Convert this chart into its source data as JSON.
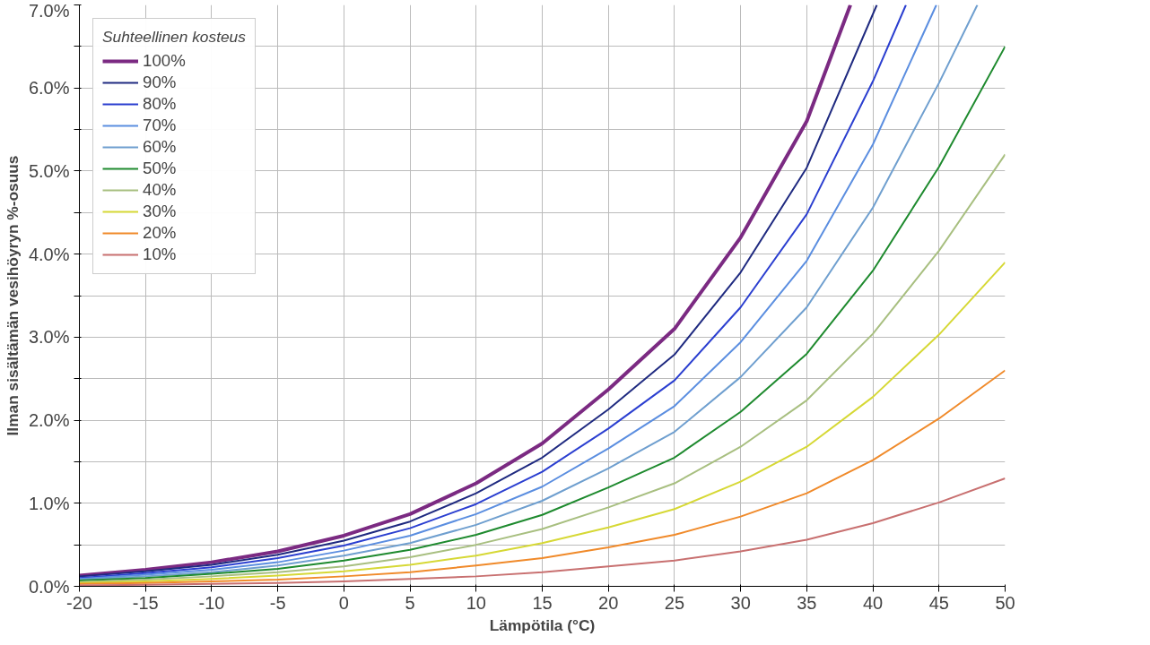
{
  "chart_data": {
    "type": "line",
    "xlabel": "Lämpötila (°C)",
    "ylabel": "Ilman sisältämän vesihöyryn %-osuus",
    "legend_title": "Suhteellinen kosteus",
    "legend": "top left",
    "grid": true,
    "marker": "none",
    "line_style": "solid",
    "xlim": [
      -20,
      50
    ],
    "xticks": [
      -20,
      -15,
      -10,
      -5,
      0,
      5,
      10,
      15,
      20,
      25,
      30,
      35,
      40,
      45,
      50
    ],
    "ylim": [
      0,
      7
    ],
    "yticks": [
      {
        "value": 0,
        "label": "0.0%"
      },
      {
        "value": 0.5,
        "label": null
      },
      {
        "value": 1,
        "label": "1.0%"
      },
      {
        "value": 1.5,
        "label": null
      },
      {
        "value": 2,
        "label": "2.0%"
      },
      {
        "value": 2.5,
        "label": null
      },
      {
        "value": 3,
        "label": "3.0%"
      },
      {
        "value": 3.5,
        "label": null
      },
      {
        "value": 4,
        "label": "4.0%"
      },
      {
        "value": 4.5,
        "label": null
      },
      {
        "value": 5,
        "label": "5.0%"
      },
      {
        "value": 5.5,
        "label": null
      },
      {
        "value": 6,
        "label": "6.0%"
      },
      {
        "value": 6.5,
        "label": null
      },
      {
        "value": 7,
        "label": "7.0%"
      }
    ],
    "series": [
      {
        "name": "100%",
        "color": "#7b2a82",
        "x": [
          -20,
          -15,
          -10,
          -5,
          0,
          5,
          10,
          15,
          20,
          25,
          30,
          35,
          38.3
        ],
        "values": [
          0.13,
          0.2,
          0.29,
          0.42,
          0.61,
          0.87,
          1.24,
          1.72,
          2.37,
          3.1,
          4.2,
          5.6,
          7.0
        ]
      },
      {
        "name": "90%",
        "color": "#1f2a80",
        "x": [
          -20,
          -15,
          -10,
          -5,
          0,
          5,
          10,
          15,
          20,
          25,
          30,
          35,
          40.3
        ],
        "values": [
          0.12,
          0.18,
          0.26,
          0.38,
          0.55,
          0.78,
          1.12,
          1.55,
          2.13,
          2.79,
          3.78,
          5.04,
          7.0
        ]
      },
      {
        "name": "80%",
        "color": "#2b3fd0",
        "x": [
          -20,
          -15,
          -10,
          -5,
          0,
          5,
          10,
          15,
          20,
          25,
          30,
          35,
          40,
          42.5
        ],
        "values": [
          0.1,
          0.16,
          0.23,
          0.34,
          0.49,
          0.7,
          0.99,
          1.38,
          1.9,
          2.48,
          3.36,
          4.48,
          6.08,
          7.0
        ]
      },
      {
        "name": "70%",
        "color": "#5b8ee0",
        "x": [
          -20,
          -15,
          -10,
          -5,
          0,
          5,
          10,
          15,
          20,
          25,
          30,
          35,
          40,
          44.8
        ],
        "values": [
          0.09,
          0.14,
          0.2,
          0.29,
          0.43,
          0.61,
          0.87,
          1.2,
          1.66,
          2.17,
          2.94,
          3.92,
          5.32,
          7.0
        ]
      },
      {
        "name": "60%",
        "color": "#6f9fcf",
        "x": [
          -20,
          -15,
          -10,
          -5,
          0,
          5,
          10,
          15,
          20,
          25,
          30,
          35,
          40,
          45,
          47.9
        ],
        "values": [
          0.08,
          0.12,
          0.17,
          0.25,
          0.37,
          0.52,
          0.74,
          1.03,
          1.42,
          1.86,
          2.52,
          3.36,
          4.56,
          6.06,
          7.0
        ]
      },
      {
        "name": "50%",
        "color": "#1e8a2e",
        "x": [
          -20,
          -15,
          -10,
          -5,
          0,
          5,
          10,
          15,
          20,
          25,
          30,
          35,
          40,
          45,
          50
        ],
        "values": [
          0.07,
          0.1,
          0.15,
          0.21,
          0.31,
          0.44,
          0.62,
          0.86,
          1.19,
          1.55,
          2.1,
          2.8,
          3.8,
          5.05,
          6.5
        ]
      },
      {
        "name": "40%",
        "color": "#a8bf80",
        "x": [
          -20,
          -15,
          -10,
          -5,
          0,
          5,
          10,
          15,
          20,
          25,
          30,
          35,
          40,
          45,
          50
        ],
        "values": [
          0.05,
          0.08,
          0.12,
          0.17,
          0.24,
          0.35,
          0.5,
          0.69,
          0.95,
          1.24,
          1.68,
          2.24,
          3.04,
          4.04,
          5.2
        ]
      },
      {
        "name": "30%",
        "color": "#d6d835",
        "x": [
          -20,
          -15,
          -10,
          -5,
          0,
          5,
          10,
          15,
          20,
          25,
          30,
          35,
          40,
          45,
          50
        ],
        "values": [
          0.04,
          0.06,
          0.09,
          0.13,
          0.18,
          0.26,
          0.37,
          0.52,
          0.71,
          0.93,
          1.26,
          1.68,
          2.28,
          3.03,
          3.9
        ]
      },
      {
        "name": "20%",
        "color": "#f08a2a",
        "x": [
          -20,
          -15,
          -10,
          -5,
          0,
          5,
          10,
          15,
          20,
          25,
          30,
          35,
          40,
          45,
          50
        ],
        "values": [
          0.03,
          0.04,
          0.06,
          0.08,
          0.12,
          0.17,
          0.25,
          0.34,
          0.47,
          0.62,
          0.84,
          1.12,
          1.52,
          2.02,
          2.6
        ]
      },
      {
        "name": "10%",
        "color": "#c87070",
        "x": [
          -20,
          -15,
          -10,
          -5,
          0,
          5,
          10,
          15,
          20,
          25,
          30,
          35,
          40,
          45,
          50
        ],
        "values": [
          0.01,
          0.02,
          0.03,
          0.04,
          0.06,
          0.09,
          0.12,
          0.17,
          0.24,
          0.31,
          0.42,
          0.56,
          0.76,
          1.01,
          1.3
        ]
      }
    ]
  }
}
